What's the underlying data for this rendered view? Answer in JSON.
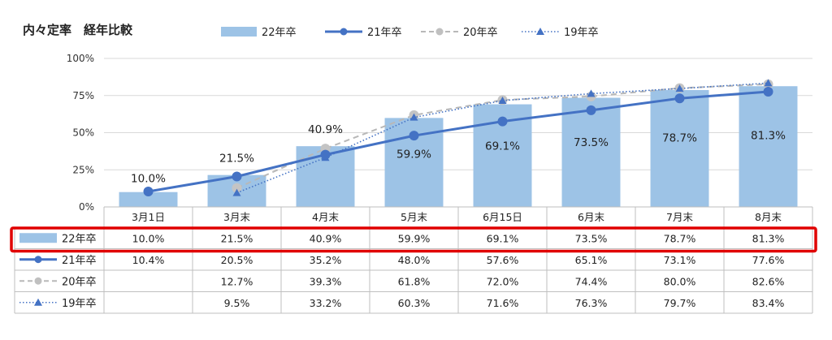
{
  "title": "内々定率　経年比較",
  "chart_data": {
    "type": "bar+line",
    "categories": [
      "3月1日",
      "3月末",
      "4月末",
      "5月末",
      "6月15日",
      "6月末",
      "7月末",
      "8月末"
    ],
    "ylim": [
      0,
      100
    ],
    "yticks": [
      "0%",
      "25%",
      "50%",
      "75%",
      "100%"
    ],
    "ytick_values": [
      0,
      25,
      50,
      75,
      100
    ],
    "grid": true,
    "legend": "top",
    "series": [
      {
        "name": "22年卒",
        "type": "bar",
        "color": "#9dc3e6",
        "values": [
          10.0,
          21.5,
          40.9,
          59.9,
          69.1,
          73.5,
          78.7,
          81.3
        ],
        "labels": [
          "10.0%",
          "21.5%",
          "40.9%",
          "59.9%",
          "69.1%",
          "73.5%",
          "78.7%",
          "81.3%"
        ]
      },
      {
        "name": "21年卒",
        "type": "line",
        "style": "solid-circle",
        "color": "#4472c4",
        "values": [
          10.4,
          20.5,
          35.2,
          48.0,
          57.6,
          65.1,
          73.1,
          77.6
        ],
        "labels": [
          "10.4%",
          "20.5%",
          "35.2%",
          "48.0%",
          "57.6%",
          "65.1%",
          "73.1%",
          "77.6%"
        ]
      },
      {
        "name": "20年卒",
        "type": "line",
        "style": "dashed-circle",
        "color": "#b8b8b8",
        "values": [
          null,
          12.7,
          39.3,
          61.8,
          72.0,
          74.4,
          80.0,
          82.6
        ],
        "labels": [
          "",
          "12.7%",
          "39.3%",
          "61.8%",
          "72.0%",
          "74.4%",
          "80.0%",
          "82.6%"
        ]
      },
      {
        "name": "19年卒",
        "type": "line",
        "style": "dotted-triangle",
        "color": "#4472c4",
        "values": [
          null,
          9.5,
          33.2,
          60.3,
          71.6,
          76.3,
          79.7,
          83.4
        ],
        "labels": [
          "",
          "9.5%",
          "33.2%",
          "60.3%",
          "71.6%",
          "76.3%",
          "79.7%",
          "83.4%"
        ]
      }
    ],
    "highlight_row": "22年卒",
    "highlight_color": "#e00000"
  }
}
